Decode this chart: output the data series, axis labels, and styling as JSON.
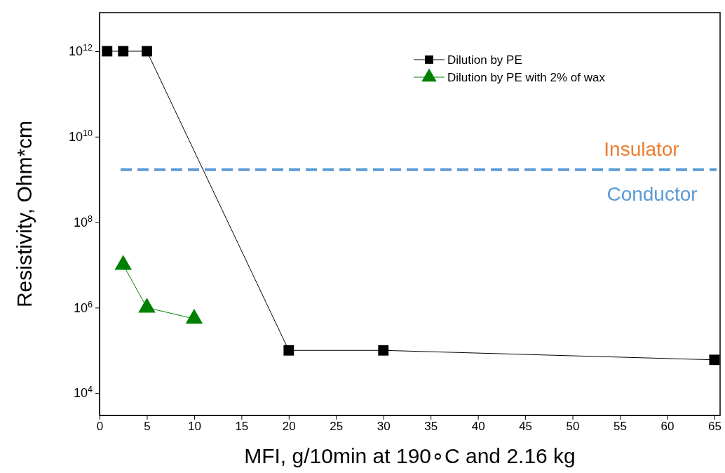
{
  "chart_data": {
    "type": "line",
    "xlabel": "MFI, g/10min at 190∘C and 2.16 kg",
    "ylabel": "Resistivity, Ohm*cm",
    "log": "y",
    "xlim": [
      0,
      65.6
    ],
    "xticks": [
      0,
      5,
      10,
      15,
      20,
      25,
      30,
      35,
      40,
      45,
      50,
      55,
      60,
      65
    ],
    "ylim": [
      3000,
      8000000000000
    ],
    "yticks": [
      {
        "value": 10000,
        "label": "10$^{4}$"
      },
      {
        "value": 1000000,
        "label": "10$^{6}$"
      },
      {
        "value": 100000000,
        "label": "10$^{8}$"
      },
      {
        "value": 10000000000,
        "label": "10$^{10}$"
      },
      {
        "value": 1000000000000,
        "label": "10$^{12}$"
      }
    ],
    "series": [
      {
        "name": "Dilution by PE",
        "color": "#000000",
        "marker": "square",
        "x": [
          0.8,
          2.5,
          5,
          20,
          30,
          65
        ],
        "values": [
          1000000000000,
          1000000000000,
          1000000000000,
          100000,
          100000,
          60000
        ]
      },
      {
        "name": "Dilution by PE with 2% of wax",
        "color": "#008000",
        "marker": "triangle",
        "x": [
          2.5,
          5,
          10
        ],
        "values": [
          10000000,
          1000000,
          550000
        ]
      }
    ],
    "ref_lines": [
      {
        "axis": "y",
        "value": 1700000000,
        "color": "#5b9bd5",
        "line_style": "dashed"
      }
    ],
    "annotations": [
      "Insulator",
      "Conductor"
    ],
    "legend": "top right",
    "grid": false
  }
}
